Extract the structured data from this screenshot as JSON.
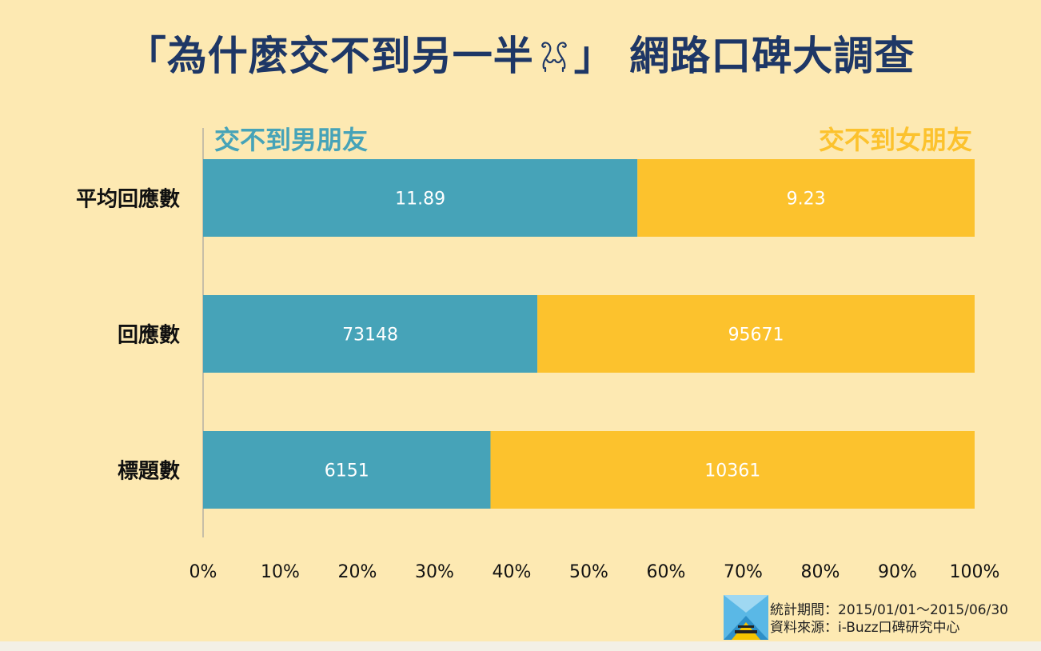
{
  "title": {
    "prefix": "「為什麼交不到另一半",
    "suffix": "」 網路口碑大調查",
    "icon": "flamingo-pair-icon"
  },
  "chart_data": {
    "type": "bar",
    "orientation": "horizontal",
    "stacking": "percent",
    "categories": [
      "平均回應數",
      "回應數",
      "標題數"
    ],
    "series": [
      {
        "name": "交不到男朋友",
        "values": [
          11.89,
          73148,
          6151
        ],
        "color": "#46a3b8"
      },
      {
        "name": "交不到女朋友",
        "values": [
          9.23,
          95671,
          10361
        ],
        "color": "#fcc22d"
      }
    ],
    "x_ticks": [
      "0%",
      "10%",
      "20%",
      "30%",
      "40%",
      "50%",
      "60%",
      "70%",
      "80%",
      "90%",
      "100%"
    ],
    "xlim": [
      0,
      100
    ],
    "grid": false,
    "legend": "top"
  },
  "footer": {
    "period": "統計期間：2015/01/01～2015/06/30",
    "source": "資料來源：i-Buzz口碑研究中心",
    "logo": "ibuzz-logo-icon"
  },
  "colors": {
    "background": "#fde9b2",
    "title": "#1e3766",
    "male": "#46a3b8",
    "female": "#fcc22d"
  }
}
